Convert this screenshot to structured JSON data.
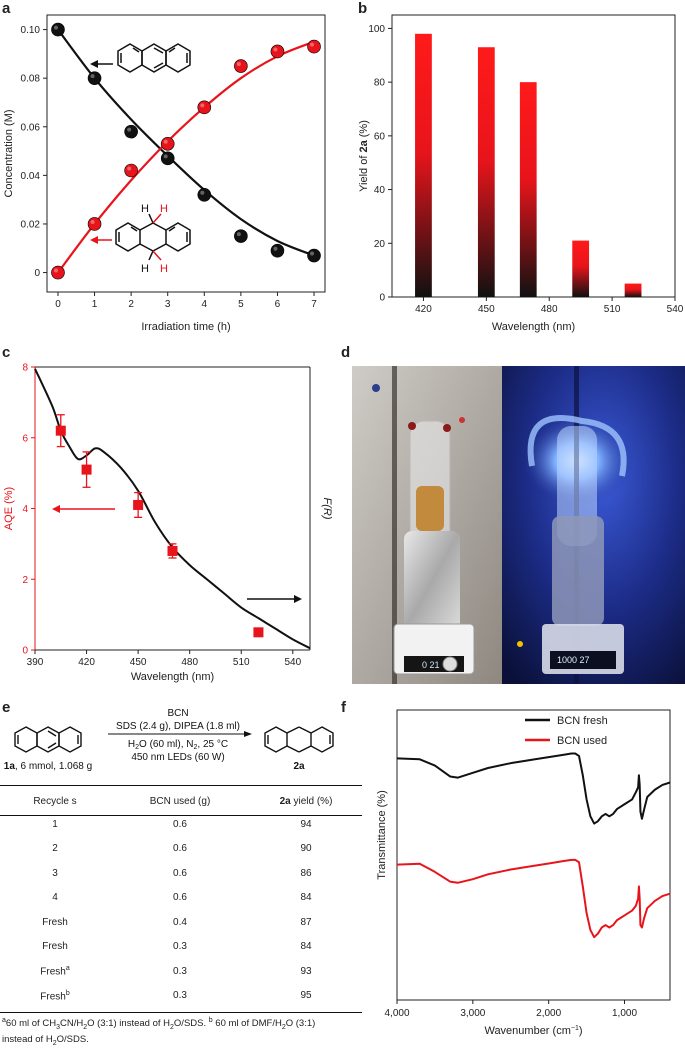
{
  "panel_labels": {
    "a": "a",
    "b": "b",
    "c": "c",
    "d": "d",
    "e": "e",
    "f": "f"
  },
  "colors": {
    "red": "#e8141b",
    "black": "#111111"
  },
  "chart_data": [
    {
      "id": "a",
      "type": "scatter",
      "xlabel": "Irradiation time (h)",
      "ylabel": "Concentration (M)",
      "xlim": [
        -0.3,
        7.3
      ],
      "ylim": [
        -0.008,
        0.106
      ],
      "xticks": [
        0,
        1,
        2,
        3,
        4,
        5,
        6,
        7
      ],
      "yticks": [
        0,
        0.02,
        0.04,
        0.06,
        0.08,
        0.1
      ],
      "ytick_labels": [
        "0",
        "0.02",
        "0.04",
        "0.06",
        "0.08",
        "0.10"
      ],
      "series": [
        {
          "color": "#111111",
          "x": [
            0,
            1,
            2,
            3,
            4,
            5,
            6,
            7
          ],
          "y": [
            0.1,
            0.08,
            0.058,
            0.047,
            0.032,
            0.015,
            0.009,
            0.007
          ],
          "fit": [
            0.1,
            0.08,
            0.063,
            0.048,
            0.034,
            0.022,
            0.013,
            0.007
          ]
        },
        {
          "color": "#e8141b",
          "x": [
            0,
            1,
            2,
            3,
            4,
            5,
            6,
            7
          ],
          "y": [
            0,
            0.02,
            0.042,
            0.053,
            0.068,
            0.085,
            0.091,
            0.093
          ],
          "fit": [
            0,
            0.02,
            0.038,
            0.054,
            0.068,
            0.08,
            0.089,
            0.095
          ]
        }
      ],
      "structure_labels": [
        "H",
        "H",
        "H",
        "H"
      ]
    },
    {
      "id": "b",
      "type": "bar",
      "xlabel": "Wavelength (nm)",
      "ylabel_parts": [
        "Yield of ",
        "2a",
        " (%)"
      ],
      "xlim": [
        405,
        540
      ],
      "ylim": [
        0,
        105
      ],
      "xticks": [
        420,
        450,
        480,
        510,
        540
      ],
      "yticks": [
        0,
        20,
        40,
        60,
        80,
        100
      ],
      "bar_width": 8,
      "bars": [
        {
          "x": 420,
          "value": 98
        },
        {
          "x": 450,
          "value": 93
        },
        {
          "x": 470,
          "value": 80
        },
        {
          "x": 495,
          "value": 21
        },
        {
          "x": 520,
          "value": 5
        }
      ]
    },
    {
      "id": "c",
      "type": "line",
      "xlabel": "Wavelength (nm)",
      "ylabel": "AQE (%)",
      "ylabel_right": "F(R)",
      "xlim": [
        390,
        550
      ],
      "ylim": [
        0,
        8
      ],
      "xticks": [
        390,
        420,
        450,
        480,
        510,
        540
      ],
      "yticks": [
        0,
        2,
        4,
        6,
        8
      ],
      "curve": {
        "x": [
          390,
          400,
          405,
          410,
          415,
          420,
          425,
          430,
          440,
          450,
          460,
          470,
          480,
          490,
          500,
          510,
          520,
          530,
          540,
          550
        ],
        "y": [
          7.95,
          6.9,
          6.2,
          5.75,
          5.4,
          5.5,
          5.7,
          5.6,
          5.15,
          4.5,
          3.6,
          2.9,
          2.4,
          2.0,
          1.6,
          1.2,
          0.9,
          0.6,
          0.3,
          0.05
        ]
      },
      "points": [
        {
          "x": 405,
          "y": 6.2,
          "err": 0.45
        },
        {
          "x": 420,
          "y": 5.1,
          "err": 0.5
        },
        {
          "x": 450,
          "y": 4.1,
          "err": 0.35
        },
        {
          "x": 470,
          "y": 2.8,
          "err": 0.2
        },
        {
          "x": 520,
          "y": 0.5,
          "err": 0
        }
      ]
    },
    {
      "id": "f",
      "type": "line",
      "xlabel_parts": [
        "Wavenumber (cm",
        "−1",
        ")"
      ],
      "ylabel": "Transmittance (%)",
      "xlim": [
        4000,
        400
      ],
      "xticks": [
        4000,
        3000,
        2000,
        1000
      ],
      "xtick_labels": [
        "4,000",
        "3,000",
        "2,000",
        "1,000"
      ],
      "legend_position": "top-right",
      "series": [
        {
          "name": "BCN fresh",
          "color": "#111111",
          "x": [
            4000,
            3700,
            3500,
            3300,
            3200,
            3000,
            2800,
            2500,
            2200,
            2000,
            1800,
            1700,
            1650,
            1600,
            1550,
            1500,
            1450,
            1400,
            1350,
            1300,
            1250,
            1200,
            1150,
            1100,
            1000,
            900,
            850,
            820,
            810,
            800,
            790,
            770,
            740,
            700,
            600,
            500,
            400
          ],
          "y": [
            100,
            99.6,
            97,
            92.5,
            92,
            94,
            96,
            98,
            99.5,
            100.5,
            101.5,
            102,
            102,
            101,
            93,
            83,
            76,
            73,
            74,
            76,
            77,
            76,
            77,
            79,
            81,
            83,
            86,
            88,
            93,
            89,
            78,
            75,
            79,
            84,
            87,
            89,
            90
          ]
        },
        {
          "name": "BCN used",
          "color": "#e8141b",
          "x": [
            4000,
            3700,
            3500,
            3300,
            3200,
            3000,
            2800,
            2500,
            2200,
            2000,
            1800,
            1700,
            1650,
            1600,
            1550,
            1500,
            1450,
            1400,
            1350,
            1300,
            1250,
            1200,
            1150,
            1100,
            1000,
            900,
            850,
            820,
            810,
            800,
            790,
            770,
            740,
            700,
            600,
            500,
            400
          ],
          "y": [
            56,
            56.4,
            53,
            49,
            48.5,
            50,
            52,
            54,
            55.5,
            56.5,
            57.5,
            58,
            58,
            57,
            47,
            36,
            29,
            26,
            27.5,
            30,
            31,
            30,
            31,
            33,
            35,
            37,
            39,
            42,
            47,
            42,
            31,
            30,
            34,
            38,
            41,
            43,
            44
          ]
        }
      ],
      "ylim": [
        0,
        120
      ]
    }
  ],
  "scheme": {
    "reagent_top": "BCN",
    "reagent_line2": "SDS (2.4 g), DIPEA (1.8 ml)",
    "reagent_line3_parts": [
      "H",
      "2",
      "O (60 ml), N",
      "2",
      ", 25 °C"
    ],
    "reagent_line4": "450 nm LEDs (60 W)",
    "substrate_bold": "1a",
    "substrate_rest": ", 6 mmol, 1.068 g",
    "product": "2a"
  },
  "table": {
    "headers": [
      "Recycle s",
      "BCN used (g)",
      "2a",
      " yield (%)"
    ],
    "rows": [
      {
        "recycle": "1",
        "sup": "",
        "bcn": "0.6",
        "yield": "94"
      },
      {
        "recycle": "2",
        "sup": "",
        "bcn": "0.6",
        "yield": "90"
      },
      {
        "recycle": "3",
        "sup": "",
        "bcn": "0.6",
        "yield": "86"
      },
      {
        "recycle": "4",
        "sup": "",
        "bcn": "0.6",
        "yield": "84"
      },
      {
        "recycle": "Fresh",
        "sup": "",
        "bcn": "0.4",
        "yield": "87"
      },
      {
        "recycle": "Fresh",
        "sup": "",
        "bcn": "0.3",
        "yield": "84"
      },
      {
        "recycle": "Fresh",
        "sup": "a",
        "bcn": "0.3",
        "yield": "93"
      },
      {
        "recycle": "Fresh",
        "sup": "b",
        "bcn": "0.3",
        "yield": "95"
      }
    ],
    "footnote_parts": [
      "a",
      "60 ml of CH",
      "3",
      "CN/H",
      "2",
      "O (3:1) instead of H",
      "2",
      "O/SDS. ",
      "b",
      " 60 ml of DMF/H",
      "2",
      "O (3:1)",
      "instead of H",
      "2",
      "O/SDS."
    ]
  },
  "photo": {
    "left_display": "0 21",
    "right_display": "1000 27"
  }
}
